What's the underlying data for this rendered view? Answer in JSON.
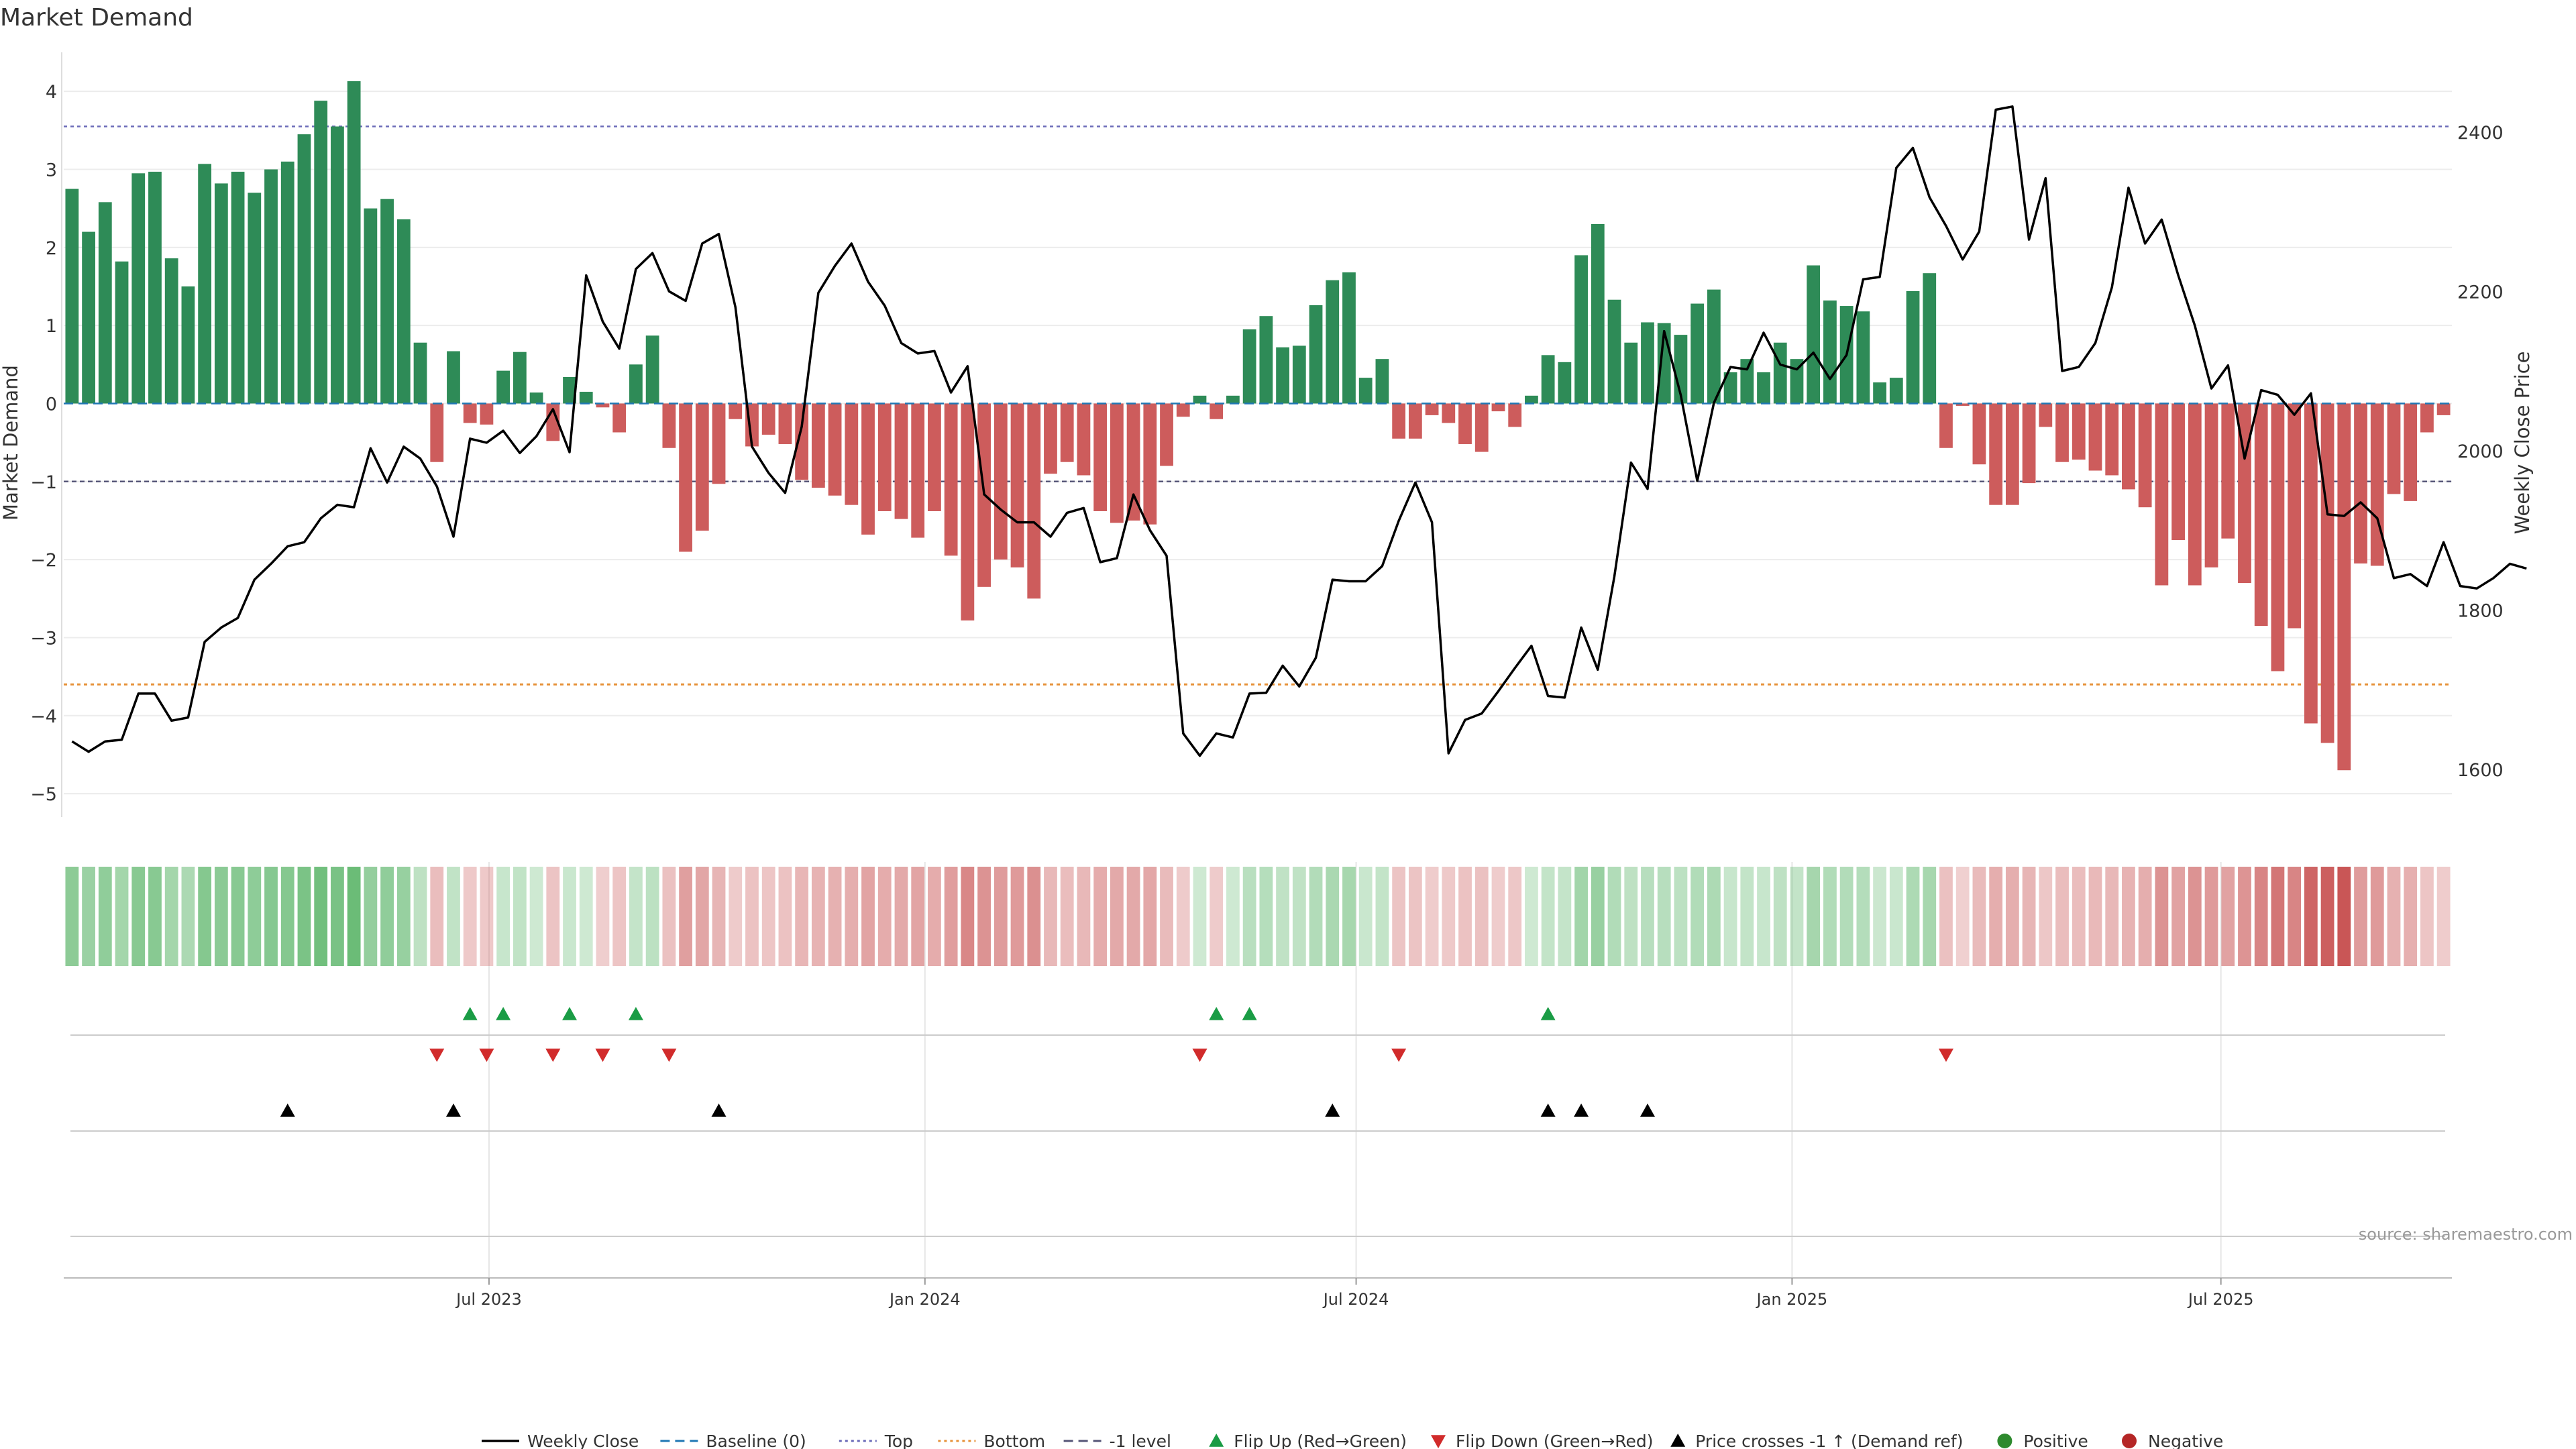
{
  "chart_data": {
    "type": "bar",
    "title": "Market Demand",
    "ylabel": "Market Demand",
    "y2label": "Weekly Close Price",
    "ylim": [
      -5.3,
      4.5
    ],
    "y2lim": [
      1540,
      2500
    ],
    "yticks": [
      4,
      3,
      2,
      1,
      0,
      -1,
      -2,
      -3,
      -4,
      -5
    ],
    "y2ticks": [
      2400,
      2200,
      2000,
      1800,
      1600
    ],
    "levels": {
      "top": 3.55,
      "bottom": -3.6,
      "minus_one": -1,
      "baseline": 0
    },
    "x_start": "2023-01-06",
    "x_step_days": 7,
    "x_ticks": [
      {
        "label": "Jul 2023",
        "date": "2023-07-01"
      },
      {
        "label": "Jan 2024",
        "date": "2024-01-01"
      },
      {
        "label": "Jul 2024",
        "date": "2024-07-01"
      },
      {
        "label": "Jan 2025",
        "date": "2025-01-01"
      },
      {
        "label": "Jul 2025",
        "date": "2025-07-01"
      }
    ],
    "series": [
      {
        "name": "Market Demand",
        "values": [
          2.75,
          2.2,
          2.58,
          1.82,
          2.95,
          2.97,
          1.86,
          1.5,
          3.07,
          2.82,
          2.97,
          2.7,
          3.0,
          3.1,
          3.45,
          3.88,
          3.55,
          4.13,
          2.5,
          2.62,
          2.36,
          0.78,
          -0.75,
          0.67,
          -0.25,
          -0.27,
          0.42,
          0.66,
          0.14,
          -0.48,
          0.34,
          0.15,
          -0.05,
          -0.37,
          0.5,
          0.87,
          -0.57,
          -1.9,
          -1.63,
          -1.03,
          -0.2,
          -0.55,
          -0.4,
          -0.52,
          -0.98,
          -1.08,
          -1.18,
          -1.3,
          -1.68,
          -1.38,
          -1.48,
          -1.72,
          -1.38,
          -1.95,
          -2.78,
          -2.35,
          -2.0,
          -2.1,
          -2.5,
          -0.9,
          -0.75,
          -0.92,
          -1.38,
          -1.53,
          -1.5,
          -1.55,
          -0.8,
          -0.17,
          0.1,
          -0.2,
          0.1,
          0.95,
          1.12,
          0.72,
          0.74,
          1.26,
          1.58,
          1.68,
          0.33,
          0.57,
          -0.45,
          -0.45,
          -0.15,
          -0.25,
          -0.52,
          -0.62,
          -0.1,
          -0.3,
          0.1,
          0.62,
          0.53,
          1.9,
          2.3,
          1.33,
          0.78,
          1.04,
          1.03,
          0.88,
          1.28,
          1.46,
          0.4,
          0.57,
          0.4,
          0.78,
          0.57,
          1.77,
          1.32,
          1.25,
          1.18,
          0.27,
          0.33,
          1.44,
          1.67,
          -0.57,
          -0.03,
          -0.78,
          -1.3,
          -1.3,
          -1.02,
          -0.3,
          -0.75,
          -0.72,
          -0.86,
          -0.92,
          -1.1,
          -1.33,
          -2.33,
          -1.75,
          -2.33,
          -2.1,
          -1.73,
          -2.3,
          -2.85,
          -3.43,
          -2.88,
          -4.1,
          -4.35,
          -4.7,
          -2.05,
          -2.08,
          -1.16,
          -1.25,
          -0.37,
          -0.15
        ]
      },
      {
        "name": "Weekly Close",
        "values": [
          1635,
          1622,
          1635,
          1637,
          1695,
          1695,
          1661,
          1665,
          1760,
          1778,
          1790,
          1838,
          1858,
          1880,
          1885,
          1915,
          1932,
          1929,
          2003,
          1960,
          2005,
          1990,
          1955,
          1892,
          2015,
          2010,
          2025,
          1997,
          2018,
          2052,
          1998,
          2220,
          2162,
          2128,
          2228,
          2248,
          2200,
          2188,
          2260,
          2272,
          2180,
          2005,
          1972,
          1947,
          2030,
          2198,
          2232,
          2260,
          2212,
          2182,
          2135,
          2122,
          2125,
          2073,
          2106,
          1945,
          1926,
          1910,
          1910,
          1892,
          1922,
          1928,
          1860,
          1865,
          1945,
          1900,
          1868,
          1645,
          1617,
          1645,
          1640,
          1695,
          1696,
          1730,
          1704,
          1740,
          1838,
          1836,
          1836,
          1855,
          1912,
          1960,
          1910,
          1620,
          1662,
          1670,
          1698,
          1727,
          1755,
          1692,
          1690,
          1778,
          1725,
          1842,
          1985,
          1952,
          2150,
          2070,
          1962,
          2060,
          2105,
          2102,
          2148,
          2108,
          2102,
          2123,
          2090,
          2120,
          2215,
          2218,
          2355,
          2380,
          2318,
          2282,
          2240,
          2275,
          2428,
          2432,
          2265,
          2342,
          2100,
          2105,
          2135,
          2205,
          2330,
          2260,
          2290,
          2220,
          2157,
          2078,
          2107,
          1990,
          2076,
          2070,
          2045,
          2072,
          1920,
          1918,
          1935,
          1915,
          1840,
          1845,
          1830,
          1885,
          1830,
          1827,
          1840,
          1858,
          1852
        ]
      }
    ],
    "demand_band": {
      "positive_color": "#5cb56a",
      "negative_color": "#c95656"
    },
    "signals": {
      "flip_up_weeks": [
        24,
        26,
        30,
        34,
        69,
        71,
        89
      ],
      "flip_down_weeks": [
        22,
        25,
        29,
        32,
        36,
        68,
        80,
        113
      ],
      "price_cross_weeks": [
        13,
        23,
        39,
        76,
        89,
        91,
        95
      ]
    },
    "legend": {
      "placement": "bottom",
      "items": [
        {
          "label": "Weekly Close",
          "kind": "line",
          "color": "#000000"
        },
        {
          "label": "Baseline (0)",
          "kind": "dash",
          "color": "#1f77b4"
        },
        {
          "label": "Top",
          "kind": "dot",
          "color": "#6b6bb8"
        },
        {
          "label": "Bottom",
          "kind": "dot",
          "color": "#e69138"
        },
        {
          "label": "-1 level",
          "kind": "dash",
          "color": "#555577"
        },
        {
          "label": "Flip Up (Red→Green)",
          "kind": "tri-up",
          "color": "#1a9c45"
        },
        {
          "label": "Flip Down (Green→Red)",
          "kind": "tri-down",
          "color": "#d12b2b"
        },
        {
          "label": "Price crosses -1 ↑ (Demand ref)",
          "kind": "tri-up",
          "color": "#000000"
        },
        {
          "label": "Positive",
          "kind": "circle",
          "color": "#2e8a2e"
        },
        {
          "label": "Negative",
          "kind": "circle",
          "color": "#b52626"
        }
      ]
    },
    "source_note": "source: sharemaestro.com",
    "colors": {
      "positive_bar": "#2e8b57",
      "negative_bar": "#cd5c5c",
      "price_line": "#000000"
    }
  }
}
